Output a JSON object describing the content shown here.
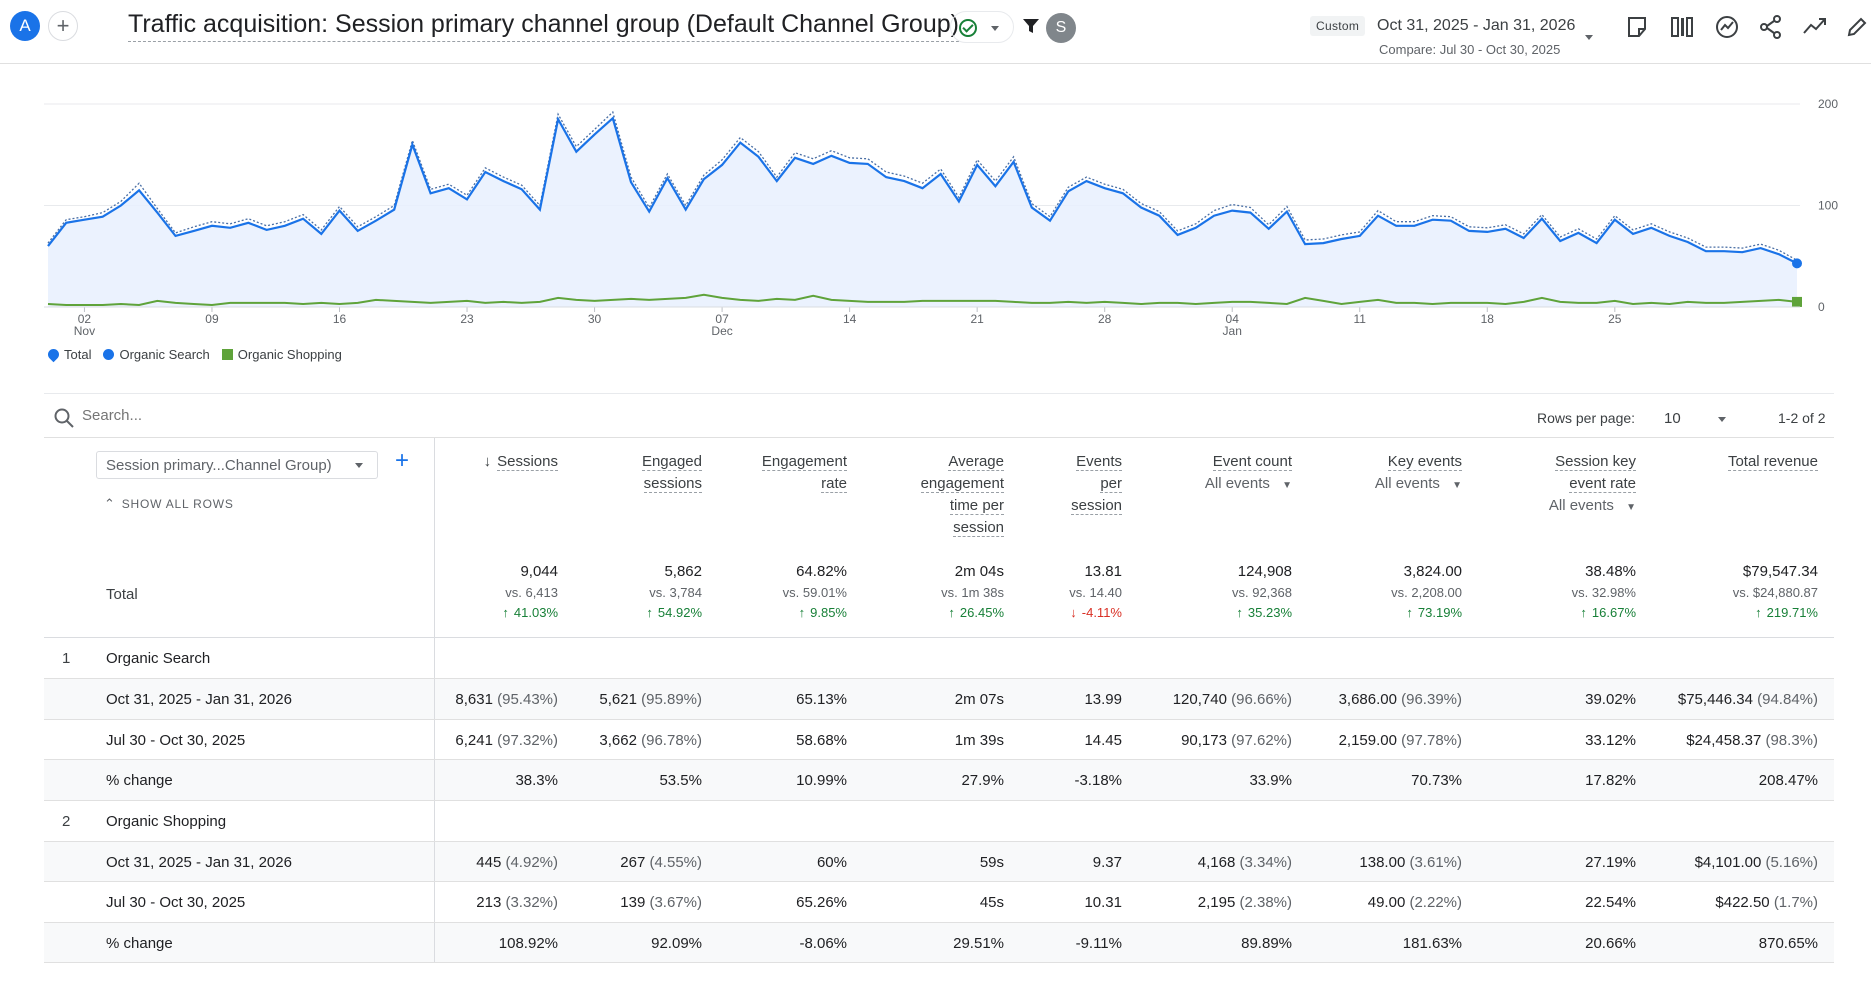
{
  "header": {
    "avatar_letter": "A",
    "add_label": "+",
    "title": "Traffic acquisition: Session primary channel group (Default Channel Group)",
    "user_initial": "S",
    "date_badge": "Custom",
    "date_range": "Oct 31, 2025 - Jan 31, 2026",
    "compare_range": "Compare: Jul 30 - Oct 30, 2025"
  },
  "legend": {
    "total": "Total",
    "organic_search": "Organic Search",
    "organic_shopping": "Organic Shopping"
  },
  "colors": {
    "total": "#1a73e8",
    "organic_search": "#1a73e8",
    "organic_shopping": "#5fa33a",
    "area_fill": "#e8f0fe"
  },
  "chart_data": {
    "type": "line",
    "x_tick_labels": [
      {
        "day": "02",
        "month": "Nov"
      },
      {
        "day": "09",
        "month": ""
      },
      {
        "day": "16",
        "month": ""
      },
      {
        "day": "23",
        "month": ""
      },
      {
        "day": "30",
        "month": ""
      },
      {
        "day": "07",
        "month": "Dec"
      },
      {
        "day": "14",
        "month": ""
      },
      {
        "day": "21",
        "month": ""
      },
      {
        "day": "28",
        "month": ""
      },
      {
        "day": "04",
        "month": "Jan"
      },
      {
        "day": "11",
        "month": ""
      },
      {
        "day": "18",
        "month": ""
      },
      {
        "day": "25",
        "month": ""
      }
    ],
    "y_tick_labels": [
      "200",
      "100",
      "0"
    ],
    "ylim": [
      0,
      200
    ],
    "series": [
      {
        "name": "Organic Search",
        "values": [
          60,
          83,
          86,
          89,
          100,
          115,
          93,
          70,
          75,
          80,
          78,
          83,
          76,
          80,
          87,
          72,
          95,
          75,
          85,
          96,
          160,
          112,
          117,
          106,
          133,
          124,
          116,
          96,
          185,
          153,
          170,
          186,
          123,
          94,
          127,
          96,
          126,
          140,
          162,
          148,
          124,
          147,
          141,
          149,
          142,
          141,
          128,
          124,
          117,
          131,
          104,
          140,
          119,
          143,
          98,
          85,
          114,
          124,
          117,
          112,
          98,
          90,
          71,
          78,
          90,
          95,
          93,
          77,
          94,
          62,
          63,
          67,
          70,
          90,
          80,
          80,
          86,
          85,
          75,
          74,
          77,
          68,
          87,
          65,
          73,
          63,
          86,
          72,
          78,
          70,
          64,
          55,
          55,
          54,
          58,
          52,
          43
        ]
      },
      {
        "name": "Total",
        "values": [
          63,
          86,
          89,
          93,
          104,
          122,
          97,
          73,
          79,
          84,
          82,
          87,
          80,
          84,
          91,
          76,
          99,
          79,
          89,
          100,
          164,
          116,
          121,
          110,
          137,
          128,
          120,
          100,
          190,
          158,
          175,
          192,
          128,
          98,
          131,
          100,
          130,
          145,
          167,
          153,
          128,
          152,
          146,
          154,
          147,
          146,
          133,
          129,
          122,
          136,
          108,
          145,
          124,
          148,
          102,
          89,
          118,
          128,
          121,
          116,
          102,
          94,
          75,
          82,
          95,
          101,
          98,
          81,
          99,
          66,
          67,
          71,
          74,
          95,
          84,
          84,
          90,
          89,
          79,
          78,
          81,
          72,
          91,
          69,
          77,
          67,
          90,
          76,
          82,
          74,
          68,
          59,
          59,
          58,
          62,
          56,
          46
        ]
      },
      {
        "name": "Organic Shopping",
        "values": [
          3,
          2,
          2,
          2,
          3,
          2,
          6,
          4,
          3,
          2,
          4,
          4,
          4,
          4,
          3,
          4,
          3,
          4,
          7,
          6,
          5,
          4,
          5,
          6,
          4,
          5,
          4,
          5,
          9,
          7,
          6,
          7,
          8,
          7,
          8,
          9,
          12,
          9,
          7,
          6,
          8,
          7,
          11,
          7,
          6,
          5,
          5,
          5,
          6,
          6,
          6,
          6,
          6,
          5,
          4,
          4,
          5,
          4,
          5,
          4,
          3,
          4,
          4,
          3,
          4,
          5,
          5,
          4,
          3,
          9,
          6,
          3,
          5,
          7,
          4,
          4,
          3,
          4,
          4,
          4,
          3,
          5,
          9,
          5,
          4,
          4,
          6,
          3,
          4,
          3,
          5,
          4,
          4,
          5,
          6,
          7,
          5
        ]
      }
    ]
  },
  "table": {
    "search_placeholder": "Search...",
    "rows_per_page_label": "Rows per page:",
    "rows_per_page_value": "10",
    "pager": "1-2 of 2",
    "dimension_label": "Session primary...Channel Group)",
    "show_all_rows": "SHOW ALL ROWS",
    "total_label": "Total",
    "columns": [
      {
        "lines": [
          "Sessions"
        ],
        "sub": "",
        "sorted": true
      },
      {
        "lines": [
          "Engaged",
          "sessions"
        ],
        "sub": "",
        "sorted": false
      },
      {
        "lines": [
          "Engagement",
          "rate"
        ],
        "sub": "",
        "sorted": false
      },
      {
        "lines": [
          "Average",
          "engagement",
          "time per",
          "session"
        ],
        "sub": "",
        "sorted": false
      },
      {
        "lines": [
          "Events",
          "per",
          "session"
        ],
        "sub": "",
        "sorted": false
      },
      {
        "lines": [
          "Event count"
        ],
        "sub": "All events",
        "sorted": false
      },
      {
        "lines": [
          "Key events"
        ],
        "sub": "All events",
        "sorted": false
      },
      {
        "lines": [
          "Session key",
          "event rate"
        ],
        "sub": "All events",
        "sorted": false
      },
      {
        "lines": [
          "Total revenue"
        ],
        "sub": "",
        "sorted": false
      }
    ],
    "totals": [
      {
        "value": "9,044",
        "vs": "vs. 6,413",
        "change": "41.03%",
        "dir": "up"
      },
      {
        "value": "5,862",
        "vs": "vs. 3,784",
        "change": "54.92%",
        "dir": "up"
      },
      {
        "value": "64.82%",
        "vs": "vs. 59.01%",
        "change": "9.85%",
        "dir": "up"
      },
      {
        "value": "2m 04s",
        "vs": "vs. 1m 38s",
        "change": "26.45%",
        "dir": "up"
      },
      {
        "value": "13.81",
        "vs": "vs. 14.40",
        "change": "-4.11%",
        "dir": "down"
      },
      {
        "value": "124,908",
        "vs": "vs. 92,368",
        "change": "35.23%",
        "dir": "up"
      },
      {
        "value": "3,824.00",
        "vs": "vs. 2,208.00",
        "change": "73.19%",
        "dir": "up"
      },
      {
        "value": "38.48%",
        "vs": "vs. 32.98%",
        "change": "16.67%",
        "dir": "up"
      },
      {
        "value": "$79,547.34",
        "vs": "vs. $24,880.87",
        "change": "219.71%",
        "dir": "up"
      }
    ],
    "groups": [
      {
        "index": "1",
        "name": "Organic Search",
        "rows": [
          {
            "label": "Oct 31, 2025 - Jan 31, 2026",
            "cells": [
              [
                "8,631",
                "(95.43%)"
              ],
              [
                "5,621",
                "(95.89%)"
              ],
              [
                "65.13%",
                ""
              ],
              [
                "2m 07s",
                ""
              ],
              [
                "13.99",
                ""
              ],
              [
                "120,740",
                "(96.66%)"
              ],
              [
                "3,686.00",
                "(96.39%)"
              ],
              [
                "39.02%",
                ""
              ],
              [
                "$75,446.34",
                "(94.84%)"
              ]
            ]
          },
          {
            "label": "Jul 30 - Oct 30, 2025",
            "cells": [
              [
                "6,241",
                "(97.32%)"
              ],
              [
                "3,662",
                "(96.78%)"
              ],
              [
                "58.68%",
                ""
              ],
              [
                "1m 39s",
                ""
              ],
              [
                "14.45",
                ""
              ],
              [
                "90,173",
                "(97.62%)"
              ],
              [
                "2,159.00",
                "(97.78%)"
              ],
              [
                "33.12%",
                ""
              ],
              [
                "$24,458.37",
                "(98.3%)"
              ]
            ]
          },
          {
            "label": "% change",
            "cells": [
              [
                "38.3%",
                ""
              ],
              [
                "53.5%",
                ""
              ],
              [
                "10.99%",
                ""
              ],
              [
                "27.9%",
                ""
              ],
              [
                "-3.18%",
                ""
              ],
              [
                "33.9%",
                ""
              ],
              [
                "70.73%",
                ""
              ],
              [
                "17.82%",
                ""
              ],
              [
                "208.47%",
                ""
              ]
            ]
          }
        ]
      },
      {
        "index": "2",
        "name": "Organic Shopping",
        "rows": [
          {
            "label": "Oct 31, 2025 - Jan 31, 2026",
            "cells": [
              [
                "445",
                "(4.92%)"
              ],
              [
                "267",
                "(4.55%)"
              ],
              [
                "60%",
                ""
              ],
              [
                "59s",
                ""
              ],
              [
                "9.37",
                ""
              ],
              [
                "4,168",
                "(3.34%)"
              ],
              [
                "138.00",
                "(3.61%)"
              ],
              [
                "27.19%",
                ""
              ],
              [
                "$4,101.00",
                "(5.16%)"
              ]
            ]
          },
          {
            "label": "Jul 30 - Oct 30, 2025",
            "cells": [
              [
                "213",
                "(3.32%)"
              ],
              [
                "139",
                "(3.67%)"
              ],
              [
                "65.26%",
                ""
              ],
              [
                "45s",
                ""
              ],
              [
                "10.31",
                ""
              ],
              [
                "2,195",
                "(2.38%)"
              ],
              [
                "49.00",
                "(2.22%)"
              ],
              [
                "22.54%",
                ""
              ],
              [
                "$422.50",
                "(1.7%)"
              ]
            ]
          },
          {
            "label": "% change",
            "cells": [
              [
                "108.92%",
                ""
              ],
              [
                "92.09%",
                ""
              ],
              [
                "-8.06%",
                ""
              ],
              [
                "29.51%",
                ""
              ],
              [
                "-9.11%",
                ""
              ],
              [
                "89.89%",
                ""
              ],
              [
                "181.63%",
                ""
              ],
              [
                "20.66%",
                ""
              ],
              [
                "870.65%",
                ""
              ]
            ]
          }
        ]
      }
    ]
  }
}
